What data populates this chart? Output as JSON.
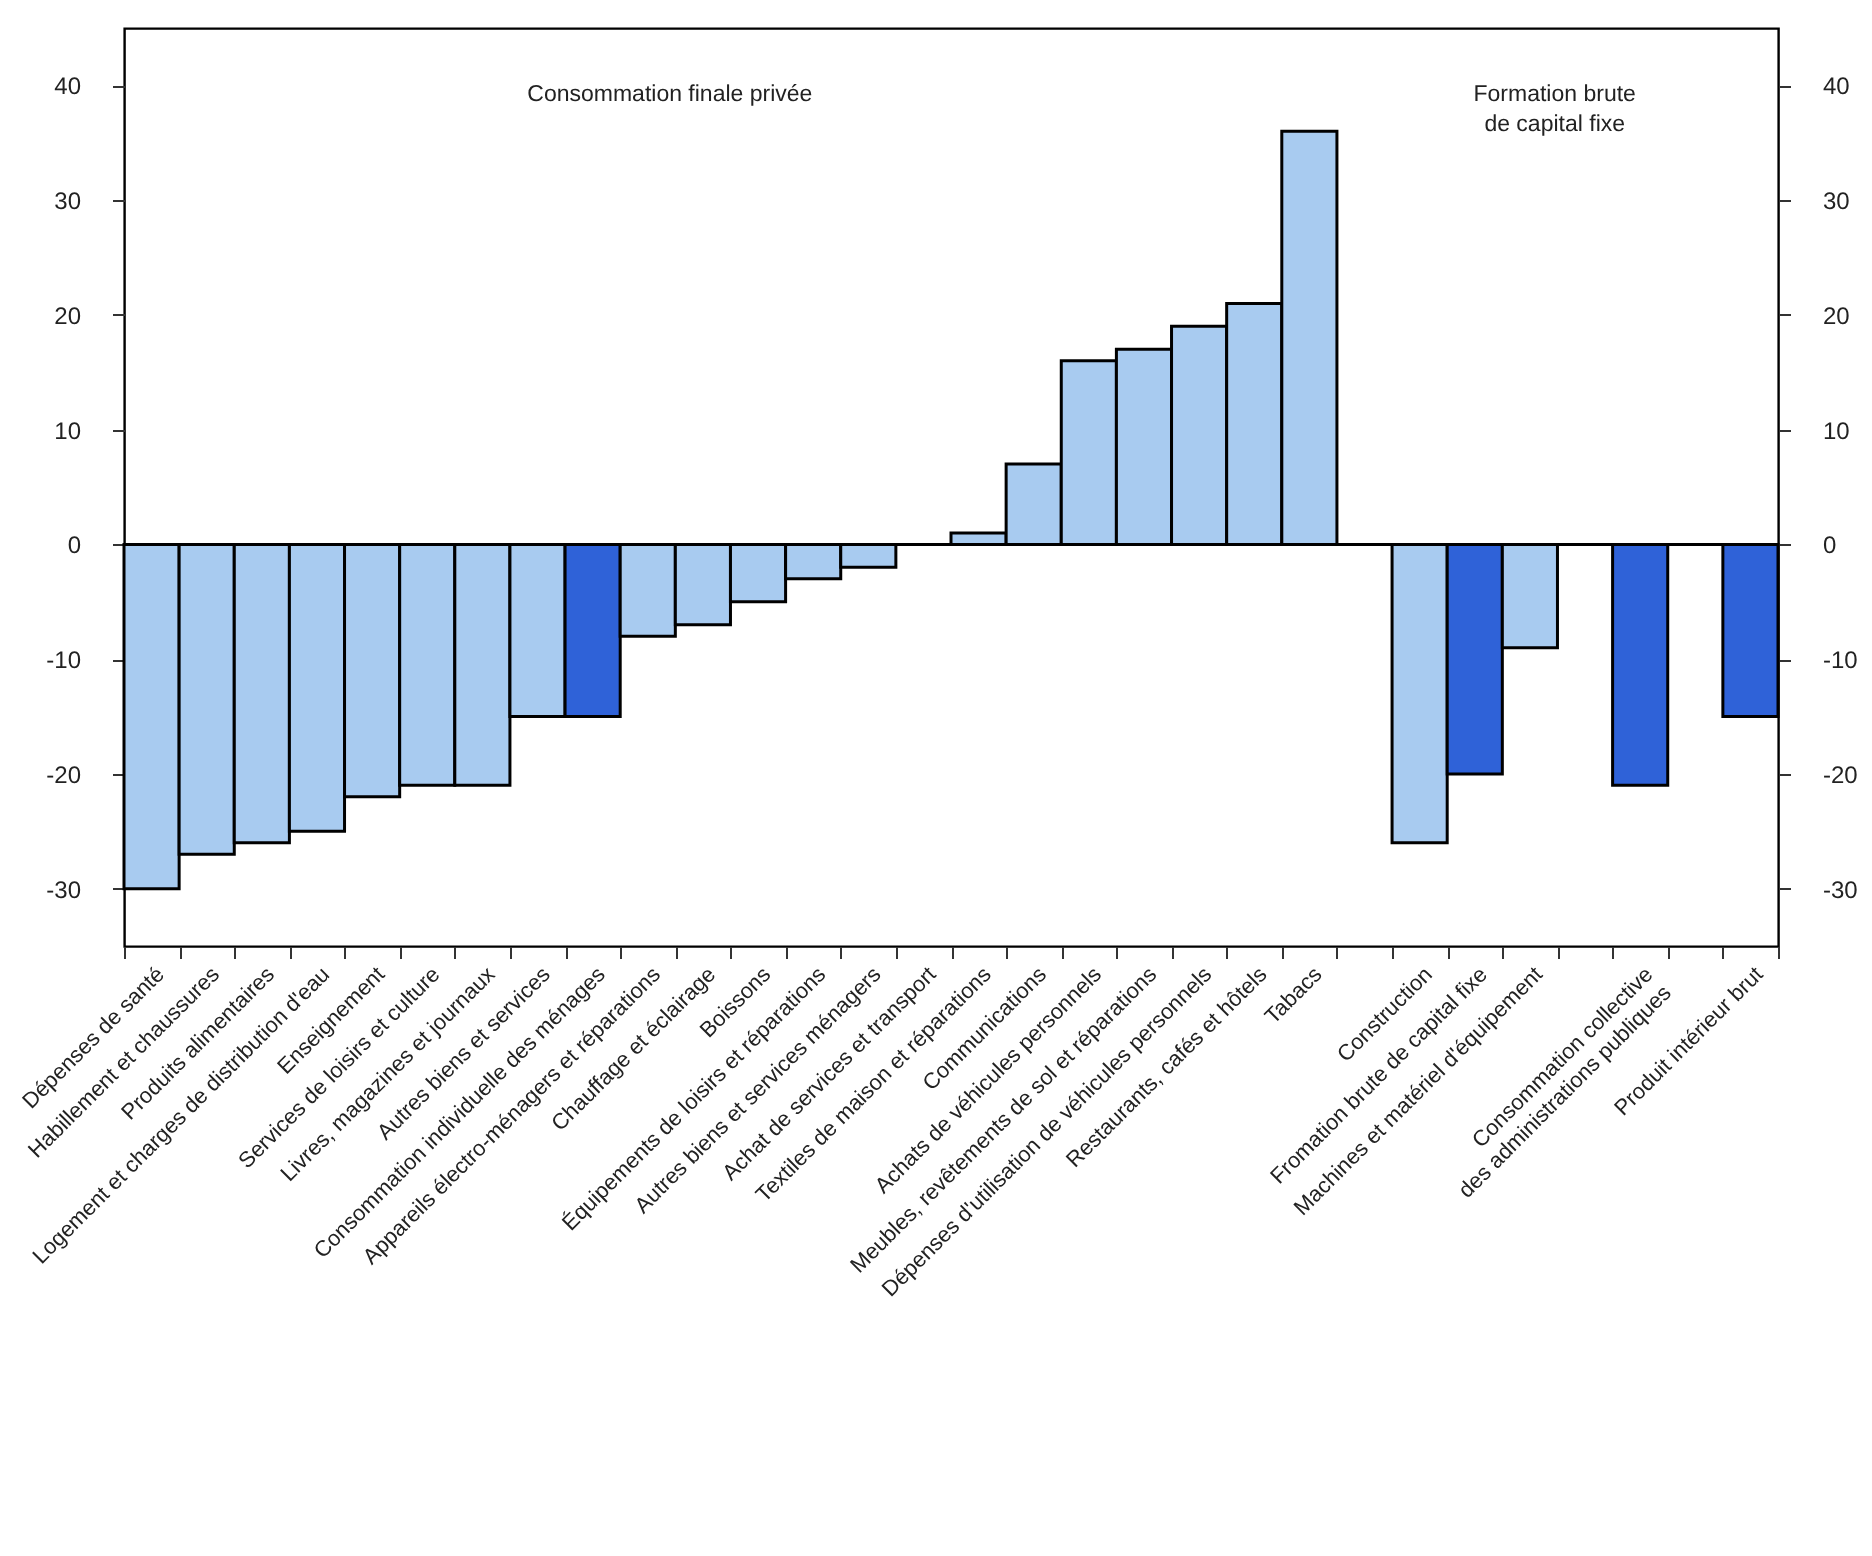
{
  "chart_data": {
    "type": "bar",
    "categories": [
      "Dépenses de santé",
      "Habillement et chaussures",
      "Produits alimentaires",
      "Logement et charges de distribution d'eau",
      "Enseignement",
      "Services de loisirs et culture",
      "Livres, magazines et journaux",
      "Autres biens et services",
      "Consommation individuelle des ménages",
      "Appareils électro-ménagers et réparations",
      "Chauffage et éclairage",
      "Boissons",
      "Équipements de loisirs et réparations",
      "Autres biens et services ménagers",
      "Achat de services et transport",
      "Textiles de maison et réparations",
      "Communications",
      "Achats de véhicules personnels",
      "Meubles, revêtements de sol et réparations",
      "Dépenses d'utilisation de véhicules personnels",
      "Restaurants, cafés et hôtels",
      "Tabacs",
      null,
      "Construction",
      "Fromation brute de capital fixe",
      "Machines et matériel d'équipement",
      null,
      "Consommation collective\ndes administrations publiques",
      null,
      "Produit intérieur brut"
    ],
    "values": [
      -30,
      -27,
      -26,
      -25,
      -22,
      -21,
      -21,
      -15,
      -15,
      -8,
      -7,
      -5,
      -3,
      -2,
      0,
      1,
      7,
      16,
      17,
      19,
      21,
      36,
      null,
      -26,
      -20,
      -9,
      null,
      -21,
      null,
      -15
    ],
    "colors": [
      "#a8cbf0",
      "#a8cbf0",
      "#a8cbf0",
      "#a8cbf0",
      "#a8cbf0",
      "#a8cbf0",
      "#a8cbf0",
      "#a8cbf0",
      "#2f62d8",
      "#a8cbf0",
      "#a8cbf0",
      "#a8cbf0",
      "#a8cbf0",
      "#a8cbf0",
      "#a8cbf0",
      "#a8cbf0",
      "#a8cbf0",
      "#a8cbf0",
      "#a8cbf0",
      "#a8cbf0",
      "#a8cbf0",
      "#a8cbf0",
      null,
      "#a8cbf0",
      "#2f62d8",
      "#a8cbf0",
      null,
      "#2f62d8",
      null,
      "#2f62d8"
    ],
    "ylim": [
      -35,
      45
    ],
    "yticks": [
      -30,
      -20,
      -10,
      0,
      10,
      20,
      30,
      40
    ],
    "y2lim": [
      -35,
      45
    ],
    "y2ticks": [
      -30,
      -20,
      -10,
      0,
      10,
      20,
      30,
      40
    ],
    "ref_lines": [
      {
        "axis": "y",
        "value": 0,
        "color": "#000000"
      }
    ],
    "annotations": [
      "Consommation finale privée",
      "Formation brute\nde capital fixe"
    ]
  }
}
